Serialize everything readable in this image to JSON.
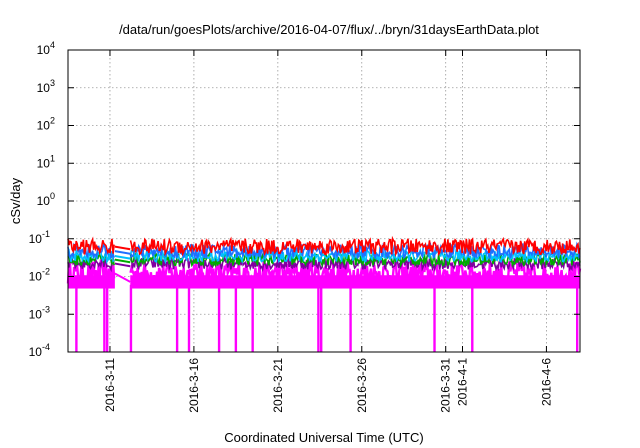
{
  "chart_data": {
    "type": "line",
    "title": "/data/run/goesPlots/archive/2016-04-07/flux/../bryn/31daysEarthData.plot",
    "xlabel": "Coordinated Universal Time (UTC)",
    "ylabel": "cSv/day",
    "y_scale": "log",
    "ylim": [
      0.0001,
      10000
    ],
    "xlim": [
      "2016-03-08T12:00",
      "2016-04-08T00:00"
    ],
    "grid": true,
    "legend": "none",
    "y_ticks": [
      {
        "value": 0.0001,
        "base": "10",
        "exp": "-4"
      },
      {
        "value": 0.001,
        "base": "10",
        "exp": "-3"
      },
      {
        "value": 0.01,
        "base": "10",
        "exp": "-2"
      },
      {
        "value": 0.1,
        "base": "10",
        "exp": "-1"
      },
      {
        "value": 1,
        "base": "10",
        "exp": "0"
      },
      {
        "value": 10,
        "base": "10",
        "exp": "1"
      },
      {
        "value": 100,
        "base": "10",
        "exp": "2"
      },
      {
        "value": 1000,
        "base": "10",
        "exp": "3"
      },
      {
        "value": 10000,
        "base": "10",
        "exp": "4"
      }
    ],
    "x_ticks": [
      {
        "value": "2016-03-11",
        "label": "2016-3-11"
      },
      {
        "value": "2016-03-16",
        "label": "2016-3-16"
      },
      {
        "value": "2016-03-21",
        "label": "2016-3-21"
      },
      {
        "value": "2016-03-26",
        "label": "2016-3-26"
      },
      {
        "value": "2016-03-31",
        "label": "2016-3-31"
      },
      {
        "value": "2016-04-01",
        "label": "2016-4-1"
      },
      {
        "value": "2016-04-06",
        "label": "2016-4-6"
      }
    ],
    "data_gap": [
      "2016-03-11T07:00",
      "2016-03-12T05:00"
    ],
    "series": [
      {
        "color": "#ff0000",
        "level": 0.062,
        "spread": 1.35
      },
      {
        "color": "#1f6fff",
        "level": 0.047,
        "spread": 1.3
      },
      {
        "color": "#00c0ff",
        "level": 0.035,
        "spread": 1.25
      },
      {
        "color": "#00aa00",
        "level": 0.028,
        "spread": 1.25
      },
      {
        "color": "#8000a0",
        "level": 0.022,
        "spread": 1.25
      },
      {
        "color": "#ff00ff",
        "level": 0.012,
        "spread": 1.6
      }
    ],
    "dropouts": [
      "2016-03-09T00:00",
      "2016-03-10T16:00",
      "2016-03-10T20:00",
      "2016-03-12T06:00",
      "2016-03-15T00:00",
      "2016-03-15T17:00",
      "2016-03-17T12:00",
      "2016-03-18T12:00",
      "2016-03-19T12:00",
      "2016-03-23T10:00",
      "2016-03-23T14:00",
      "2016-03-25T08:00",
      "2016-03-30T08:00",
      "2016-04-01T14:00",
      "2016-04-07T20:00"
    ]
  }
}
